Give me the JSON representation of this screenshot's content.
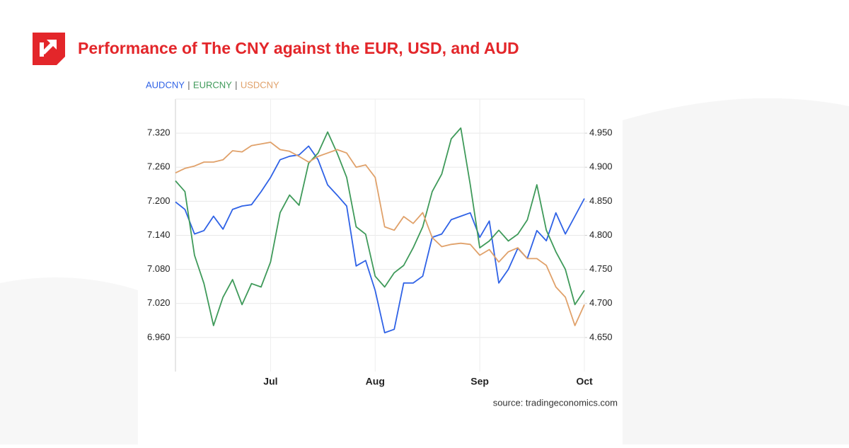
{
  "chart_data": {
    "type": "line",
    "title": "Performance of The CNY against the EUR, USD, and AUD",
    "source": "source: tradingeconomics.com",
    "categories": [
      null,
      null,
      null,
      null,
      null,
      null,
      null,
      null,
      null,
      null,
      "Jul",
      null,
      null,
      null,
      null,
      null,
      null,
      null,
      null,
      null,
      null,
      "Aug",
      null,
      null,
      null,
      null,
      null,
      null,
      null,
      null,
      null,
      null,
      "Sep",
      null,
      null,
      null,
      null,
      null,
      null,
      null,
      null,
      null,
      null,
      "Oct"
    ],
    "ylim": [
      6.9,
      7.38
    ],
    "yticks": [
      {
        "value": 6.96,
        "label": "6.960"
      },
      {
        "value": 7.02,
        "label": "7.020"
      },
      {
        "value": 7.08,
        "label": "7.080"
      },
      {
        "value": 7.14,
        "label": "7.140"
      },
      {
        "value": 7.2,
        "label": "7.200"
      },
      {
        "value": 7.26,
        "label": "7.260"
      },
      {
        "value": 7.32,
        "label": "7.320"
      }
    ],
    "y2lim": [
      4.6,
      5.0
    ],
    "y2ticks": [
      {
        "value": 4.65,
        "label": "4.650"
      },
      {
        "value": 4.7,
        "label": "4.700"
      },
      {
        "value": 4.75,
        "label": "4.750"
      },
      {
        "value": 4.8,
        "label": "4.800"
      },
      {
        "value": 4.85,
        "label": "4.850"
      },
      {
        "value": 4.9,
        "label": "4.900"
      },
      {
        "value": 4.95,
        "label": "4.950"
      }
    ],
    "grid": true,
    "series": [
      {
        "name": "AUDCNY",
        "color": "#2f62e6",
        "axis": "y2",
        "values": [
          4.849,
          4.838,
          4.802,
          4.807,
          4.828,
          4.809,
          4.838,
          4.843,
          4.845,
          4.864,
          4.885,
          4.911,
          4.916,
          4.918,
          4.931,
          4.911,
          4.874,
          4.859,
          4.843,
          4.755,
          4.763,
          4.719,
          4.657,
          4.662,
          4.73,
          4.73,
          4.74,
          4.797,
          4.802,
          4.823,
          4.828,
          4.833,
          4.797,
          4.821,
          4.73,
          4.75,
          4.781,
          4.766,
          4.807,
          4.792,
          4.833,
          4.802,
          4.828,
          4.854
        ]
      },
      {
        "name": "EURCNY",
        "color": "#3f9a5a",
        "values": [
          7.236,
          7.217,
          7.105,
          7.055,
          6.981,
          7.031,
          7.062,
          7.018,
          7.055,
          7.049,
          7.093,
          7.18,
          7.211,
          7.193,
          7.267,
          7.285,
          7.322,
          7.285,
          7.242,
          7.155,
          7.142,
          7.068,
          7.049,
          7.074,
          7.087,
          7.118,
          7.155,
          7.217,
          7.248,
          7.31,
          7.329,
          7.229,
          7.118,
          7.13,
          7.149,
          7.13,
          7.142,
          7.167,
          7.229,
          7.149,
          7.111,
          7.08,
          7.018,
          7.043
        ]
      },
      {
        "name": "USDCNY",
        "color": "#e0a16a",
        "values": [
          7.25,
          7.258,
          7.262,
          7.269,
          7.269,
          7.273,
          7.289,
          7.287,
          7.298,
          7.301,
          7.304,
          7.291,
          7.288,
          7.279,
          7.269,
          7.279,
          7.285,
          7.291,
          7.285,
          7.26,
          7.264,
          7.242,
          7.155,
          7.149,
          7.173,
          7.161,
          7.18,
          7.136,
          7.12,
          7.124,
          7.126,
          7.124,
          7.105,
          7.115,
          7.093,
          7.111,
          7.118,
          7.099,
          7.099,
          7.087,
          7.049,
          7.031,
          6.981,
          7.018
        ]
      }
    ]
  }
}
